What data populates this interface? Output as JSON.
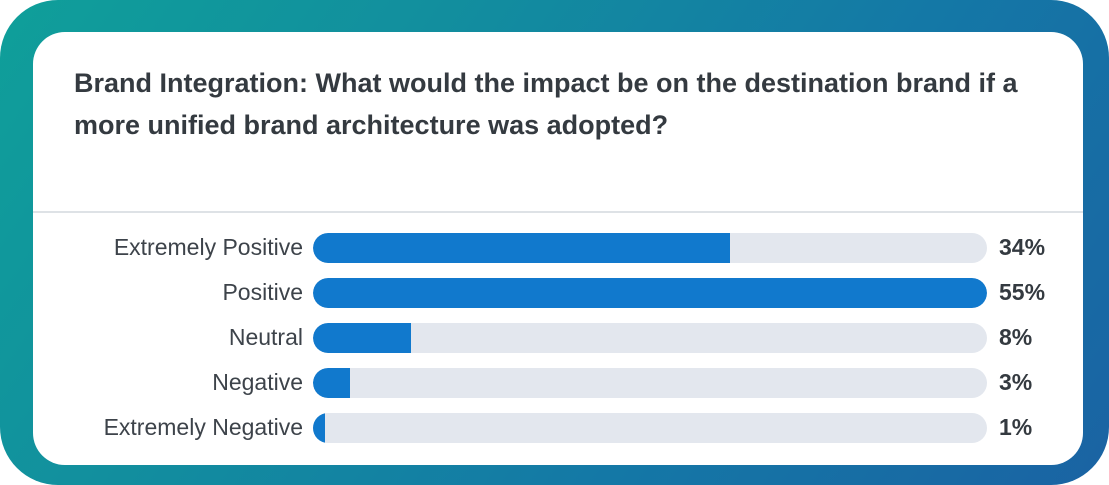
{
  "poll": {
    "question": "Brand Integration: What would the impact be on the destination brand if a more unified brand architecture was adopted?"
  },
  "colors": {
    "bar_fill": "#1179cd",
    "bar_track": "#e3e7ee",
    "frame_gradient": [
      "#0f9f9a",
      "#1a63a3"
    ]
  },
  "chart_data": {
    "type": "bar",
    "orientation": "horizontal",
    "title": "Brand Integration: What would the impact be on the destination brand if a more unified brand architecture was adopted?",
    "categories": [
      "Extremely Positive",
      "Positive",
      "Neutral",
      "Negative",
      "Extremely Negative"
    ],
    "values": [
      34,
      55,
      8,
      3,
      1
    ],
    "value_labels": [
      "34%",
      "55%",
      "8%",
      "3%",
      "1%"
    ],
    "xlim": [
      0,
      55
    ],
    "grid": false,
    "legend": "none"
  }
}
